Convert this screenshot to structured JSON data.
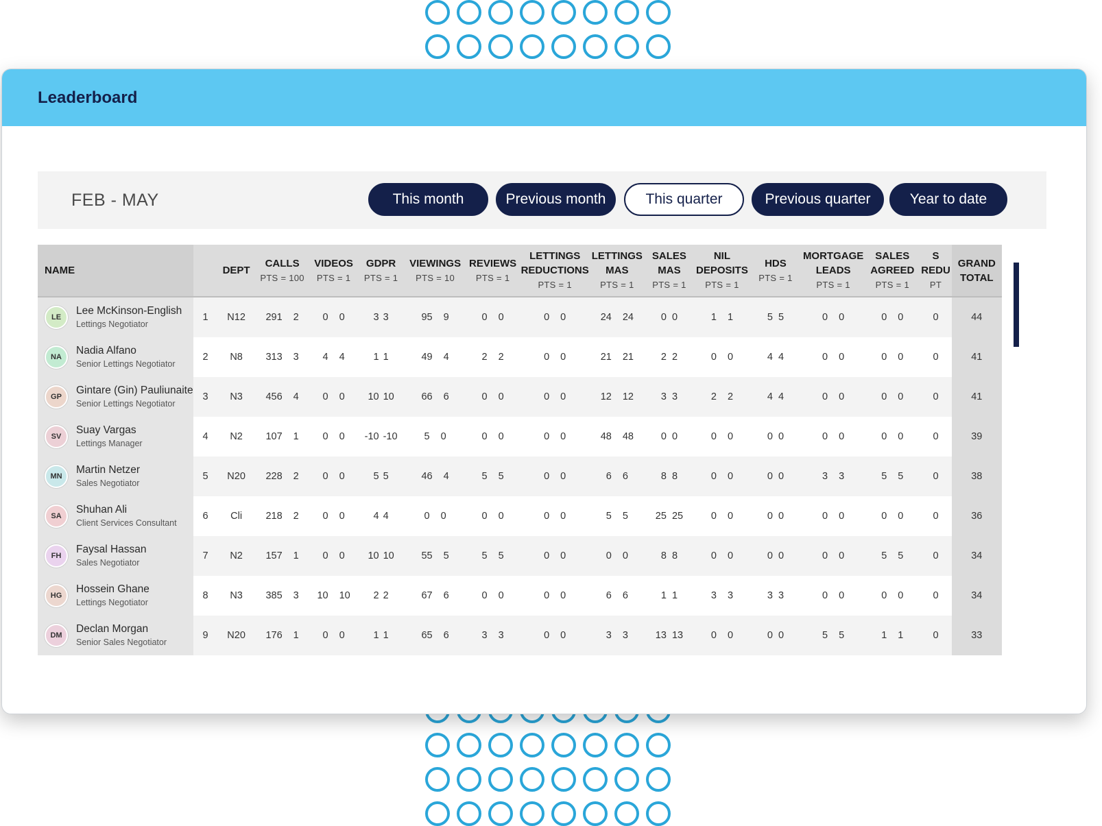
{
  "header": {
    "title": "Leaderboard"
  },
  "filter": {
    "period": "FEB - MAY",
    "buttons": [
      {
        "label": "This month",
        "selected": false
      },
      {
        "label": "Previous month",
        "selected": false
      },
      {
        "label": "This quarter",
        "selected": true
      },
      {
        "label": "Previous quarter",
        "selected": false
      },
      {
        "label": "Year to date",
        "selected": false
      }
    ]
  },
  "colors": {
    "brand_navy": "#14204a",
    "header_blue": "#5dc8f2",
    "decor_ring": "#2aa6d9"
  },
  "table": {
    "columns": [
      {
        "key": "name",
        "title": "NAME",
        "pts": ""
      },
      {
        "key": "rank",
        "title": "",
        "pts": ""
      },
      {
        "key": "dept",
        "title": "DEPT",
        "pts": ""
      },
      {
        "key": "calls",
        "title": "CALLS",
        "pts": "PTS = 100"
      },
      {
        "key": "videos",
        "title": "VIDEOS",
        "pts": "PTS = 1"
      },
      {
        "key": "gdpr",
        "title": "GDPR",
        "pts": "PTS = 1"
      },
      {
        "key": "viewings",
        "title": "VIEWINGS",
        "pts": "PTS = 10"
      },
      {
        "key": "reviews",
        "title": "REVIEWS",
        "pts": "PTS = 1"
      },
      {
        "key": "lettings_reductions",
        "title": "LETTINGS\nREDUCTIONS",
        "pts": "PTS = 1"
      },
      {
        "key": "lettings_mas",
        "title": "LETTINGS\nMAS",
        "pts": "PTS = 1"
      },
      {
        "key": "sales_mas",
        "title": "SALES\nMAS",
        "pts": "PTS = 1"
      },
      {
        "key": "nil_deposits",
        "title": "NIL\nDEPOSITS",
        "pts": "PTS = 1"
      },
      {
        "key": "hds",
        "title": "HDS",
        "pts": "PTS = 1"
      },
      {
        "key": "mortgage_leads",
        "title": "MORTGAGE\nLEADS",
        "pts": "PTS = 1"
      },
      {
        "key": "sales_agreed",
        "title": "SALES\nAGREED",
        "pts": "PTS = 1"
      },
      {
        "key": "sales_reductions",
        "title": "S\nREDU",
        "pts": "PT"
      },
      {
        "key": "grand_total",
        "title": "GRAND\nTOTAL",
        "pts": ""
      }
    ],
    "rows": [
      {
        "initials": "LE",
        "avatar_color": "#d3ebc6",
        "name": "Lee McKinson-English",
        "role": "Lettings Negotiator",
        "rank": "1",
        "dept": "N12",
        "calls": [
          "291",
          "2"
        ],
        "videos": [
          "0",
          "0"
        ],
        "gdpr": [
          "3",
          "3"
        ],
        "viewings": [
          "95",
          "9"
        ],
        "reviews": [
          "0",
          "0"
        ],
        "lettings_reductions": [
          "0",
          "0"
        ],
        "lettings_mas": [
          "24",
          "24"
        ],
        "sales_mas": [
          "0",
          "0"
        ],
        "nil_deposits": [
          "1",
          "1"
        ],
        "hds": [
          "5",
          "5"
        ],
        "mortgage_leads": [
          "0",
          "0"
        ],
        "sales_agreed": [
          "0",
          "0"
        ],
        "sales_reductions": "0",
        "grand_total": "44"
      },
      {
        "initials": "NA",
        "avatar_color": "#c2ebd2",
        "name": "Nadia Alfano",
        "role": "Senior Lettings Negotiator",
        "rank": "2",
        "dept": "N8",
        "calls": [
          "313",
          "3"
        ],
        "videos": [
          "4",
          "4"
        ],
        "gdpr": [
          "1",
          "1"
        ],
        "viewings": [
          "49",
          "4"
        ],
        "reviews": [
          "2",
          "2"
        ],
        "lettings_reductions": [
          "0",
          "0"
        ],
        "lettings_mas": [
          "21",
          "21"
        ],
        "sales_mas": [
          "2",
          "2"
        ],
        "nil_deposits": [
          "0",
          "0"
        ],
        "hds": [
          "4",
          "4"
        ],
        "mortgage_leads": [
          "0",
          "0"
        ],
        "sales_agreed": [
          "0",
          "0"
        ],
        "sales_reductions": "0",
        "grand_total": "41"
      },
      {
        "initials": "GP",
        "avatar_color": "#ecd6cb",
        "name": "Gintare (Gin) Pauliunaite",
        "role": "Senior Lettings Negotiator",
        "rank": "3",
        "dept": "N3",
        "calls": [
          "456",
          "4"
        ],
        "videos": [
          "0",
          "0"
        ],
        "gdpr": [
          "10",
          "10"
        ],
        "viewings": [
          "66",
          "6"
        ],
        "reviews": [
          "0",
          "0"
        ],
        "lettings_reductions": [
          "0",
          "0"
        ],
        "lettings_mas": [
          "12",
          "12"
        ],
        "sales_mas": [
          "3",
          "3"
        ],
        "nil_deposits": [
          "2",
          "2"
        ],
        "hds": [
          "4",
          "4"
        ],
        "mortgage_leads": [
          "0",
          "0"
        ],
        "sales_agreed": [
          "0",
          "0"
        ],
        "sales_reductions": "0",
        "grand_total": "41"
      },
      {
        "initials": "SV",
        "avatar_color": "#ecd0d6",
        "name": "Suay Vargas",
        "role": "Lettings Manager",
        "rank": "4",
        "dept": "N2",
        "calls": [
          "107",
          "1"
        ],
        "videos": [
          "0",
          "0"
        ],
        "gdpr": [
          "-10",
          "-10"
        ],
        "viewings": [
          "5",
          "0"
        ],
        "reviews": [
          "0",
          "0"
        ],
        "lettings_reductions": [
          "0",
          "0"
        ],
        "lettings_mas": [
          "48",
          "48"
        ],
        "sales_mas": [
          "0",
          "0"
        ],
        "nil_deposits": [
          "0",
          "0"
        ],
        "hds": [
          "0",
          "0"
        ],
        "mortgage_leads": [
          "0",
          "0"
        ],
        "sales_agreed": [
          "0",
          "0"
        ],
        "sales_reductions": "0",
        "grand_total": "39"
      },
      {
        "initials": "MN",
        "avatar_color": "#c9e8ea",
        "name": "Martin Netzer",
        "role": "Sales Negotiator",
        "rank": "5",
        "dept": "N20",
        "calls": [
          "228",
          "2"
        ],
        "videos": [
          "0",
          "0"
        ],
        "gdpr": [
          "5",
          "5"
        ],
        "viewings": [
          "46",
          "4"
        ],
        "reviews": [
          "5",
          "5"
        ],
        "lettings_reductions": [
          "0",
          "0"
        ],
        "lettings_mas": [
          "6",
          "6"
        ],
        "sales_mas": [
          "8",
          "8"
        ],
        "nil_deposits": [
          "0",
          "0"
        ],
        "hds": [
          "0",
          "0"
        ],
        "mortgage_leads": [
          "3",
          "3"
        ],
        "sales_agreed": [
          "5",
          "5"
        ],
        "sales_reductions": "0",
        "grand_total": "38"
      },
      {
        "initials": "SA",
        "avatar_color": "#f0cfd2",
        "name": "Shuhan Ali",
        "role": "Client Services Consultant",
        "rank": "6",
        "dept": "Cli",
        "calls": [
          "218",
          "2"
        ],
        "videos": [
          "0",
          "0"
        ],
        "gdpr": [
          "4",
          "4"
        ],
        "viewings": [
          "0",
          "0"
        ],
        "reviews": [
          "0",
          "0"
        ],
        "lettings_reductions": [
          "0",
          "0"
        ],
        "lettings_mas": [
          "5",
          "5"
        ],
        "sales_mas": [
          "25",
          "25"
        ],
        "nil_deposits": [
          "0",
          "0"
        ],
        "hds": [
          "0",
          "0"
        ],
        "mortgage_leads": [
          "0",
          "0"
        ],
        "sales_agreed": [
          "0",
          "0"
        ],
        "sales_reductions": "0",
        "grand_total": "36"
      },
      {
        "initials": "FH",
        "avatar_color": "#ead3ee",
        "name": "Faysal Hassan",
        "role": "Sales Negotiator",
        "rank": "7",
        "dept": "N2",
        "calls": [
          "157",
          "1"
        ],
        "videos": [
          "0",
          "0"
        ],
        "gdpr": [
          "10",
          "10"
        ],
        "viewings": [
          "55",
          "5"
        ],
        "reviews": [
          "5",
          "5"
        ],
        "lettings_reductions": [
          "0",
          "0"
        ],
        "lettings_mas": [
          "0",
          "0"
        ],
        "sales_mas": [
          "8",
          "8"
        ],
        "nil_deposits": [
          "0",
          "0"
        ],
        "hds": [
          "0",
          "0"
        ],
        "mortgage_leads": [
          "0",
          "0"
        ],
        "sales_agreed": [
          "5",
          "5"
        ],
        "sales_reductions": "0",
        "grand_total": "34"
      },
      {
        "initials": "HG",
        "avatar_color": "#ecd7cf",
        "name": "Hossein Ghane",
        "role": "Lettings Negotiator",
        "rank": "8",
        "dept": "N3",
        "calls": [
          "385",
          "3"
        ],
        "videos": [
          "10",
          "10"
        ],
        "gdpr": [
          "2",
          "2"
        ],
        "viewings": [
          "67",
          "6"
        ],
        "reviews": [
          "0",
          "0"
        ],
        "lettings_reductions": [
          "0",
          "0"
        ],
        "lettings_mas": [
          "6",
          "6"
        ],
        "sales_mas": [
          "1",
          "1"
        ],
        "nil_deposits": [
          "3",
          "3"
        ],
        "hds": [
          "3",
          "3"
        ],
        "mortgage_leads": [
          "0",
          "0"
        ],
        "sales_agreed": [
          "0",
          "0"
        ],
        "sales_reductions": "0",
        "grand_total": "34"
      },
      {
        "initials": "DM",
        "avatar_color": "#ecd0dc",
        "name": "Declan Morgan",
        "role": "Senior Sales Negotiator",
        "rank": "9",
        "dept": "N20",
        "calls": [
          "176",
          "1"
        ],
        "videos": [
          "0",
          "0"
        ],
        "gdpr": [
          "1",
          "1"
        ],
        "viewings": [
          "65",
          "6"
        ],
        "reviews": [
          "3",
          "3"
        ],
        "lettings_reductions": [
          "0",
          "0"
        ],
        "lettings_mas": [
          "3",
          "3"
        ],
        "sales_mas": [
          "13",
          "13"
        ],
        "nil_deposits": [
          "0",
          "0"
        ],
        "hds": [
          "0",
          "0"
        ],
        "mortgage_leads": [
          "5",
          "5"
        ],
        "sales_agreed": [
          "1",
          "1"
        ],
        "sales_reductions": "0",
        "grand_total": "33"
      }
    ]
  }
}
